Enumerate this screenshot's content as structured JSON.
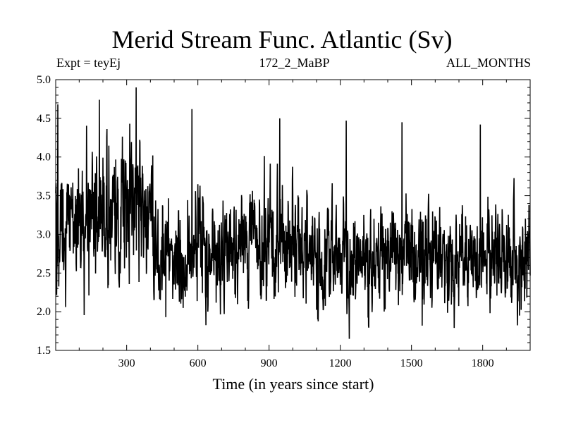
{
  "chart_data": {
    "type": "line",
    "title": "Merid Stream Func. Atlantic (Sv)",
    "subtitle_left": "Expt = teyEj",
    "subtitle_center": "172_2_MaBP",
    "subtitle_right": "ALL_MONTHS",
    "xlabel": "Time (in years since start)",
    "ylabel": "",
    "xlim": [
      1,
      2000
    ],
    "ylim": [
      1.5,
      5.0
    ],
    "xticks": [
      300,
      600,
      900,
      1200,
      1500,
      1800
    ],
    "xtick_labels": [
      "300",
      "600",
      "900",
      "1200",
      "1500",
      "1800"
    ],
    "yticks": [
      1.5,
      2.0,
      2.5,
      3.0,
      3.5,
      4.0,
      4.5,
      5.0
    ],
    "ytick_labels": [
      "1.5",
      "2.0",
      "2.5",
      "3.0",
      "3.5",
      "4.0",
      "4.5",
      "5.0"
    ],
    "series": [
      {
        "name": "Atlantic meridional stream function",
        "segments": [
          {
            "x_start": 1,
            "x_end": 130,
            "mean": 3.15,
            "std": 0.38
          },
          {
            "x_start": 130,
            "x_end": 410,
            "mean": 3.35,
            "std": 0.42
          },
          {
            "x_start": 410,
            "x_end": 560,
            "mean": 2.65,
            "std": 0.33
          },
          {
            "x_start": 560,
            "x_end": 1000,
            "mean": 2.85,
            "std": 0.35
          },
          {
            "x_start": 1000,
            "x_end": 2000,
            "mean": 2.72,
            "std": 0.34
          }
        ],
        "peaks": [
          {
            "x": 10,
            "y": 4.68
          },
          {
            "x": 185,
            "y": 4.74
          },
          {
            "x": 340,
            "y": 4.9
          },
          {
            "x": 575,
            "y": 4.62
          },
          {
            "x": 945,
            "y": 4.5
          },
          {
            "x": 1225,
            "y": 4.47
          },
          {
            "x": 1460,
            "y": 4.45
          },
          {
            "x": 1790,
            "y": 4.42
          }
        ],
        "troughs": [
          {
            "x": 465,
            "y": 1.93
          },
          {
            "x": 1105,
            "y": 1.9
          },
          {
            "x": 1545,
            "y": 1.82
          },
          {
            "x": 1680,
            "y": 1.79
          },
          {
            "x": 1955,
            "y": 1.95
          }
        ]
      }
    ]
  }
}
